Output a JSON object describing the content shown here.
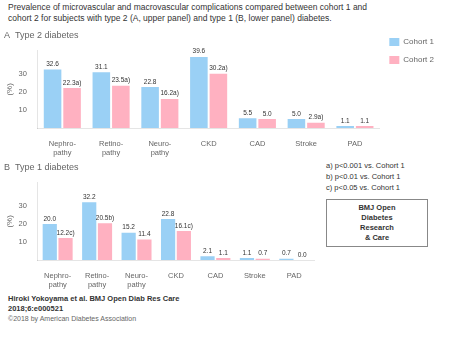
{
  "title": [
    "Prevalence of microvascular and macrovascular complications compared between cohort 1 and",
    "cohort 2 for subjects with type 2 (A, upper panel) and type 1 (B, lower panel) diabetes."
  ],
  "annotations": [
    "a) p<0.001 vs. Cohort 1",
    "b) p<0.01 vs. Cohort 1",
    "c) p<0.05 vs. Cohort 1",
    "BMJ Open\nDiabetes\nResearch\n& Care",
    "Hiroki Yokoyama et al. BMJ Open Diab Res Care",
    "2018;6:e000521",
    "©2018 by American Diabetes Association"
  ],
  "chart_data": [
    {
      "type": "bar",
      "title": "A  Type 2 diabetes",
      "categories": [
        "Nephro-\npathy",
        "Retino-\npathy",
        "Neuro-\npathy",
        "CKD",
        "CAD",
        "Stroke",
        "PAD"
      ],
      "series": [
        {
          "name": "Cohort 1",
          "values": [
            32.6,
            31.1,
            22.8,
            39.6,
            5.5,
            5.0,
            1.1
          ],
          "value_labels": [
            "32.6",
            "31.1",
            "22.8",
            "39.6",
            "5.5",
            "5.0",
            "1.1"
          ]
        },
        {
          "name": "Cohort 2",
          "values": [
            22.3,
            23.5,
            16.2,
            30.2,
            5.0,
            2.9,
            1.1
          ],
          "value_labels": [
            "22.3a)",
            "23.5a)",
            "16.2a)",
            "30.2a)",
            "5.0",
            "2.9a)",
            "1.1"
          ]
        }
      ],
      "ylabel": "(%)",
      "ylim": [
        0,
        43
      ],
      "yticks": [
        10,
        20,
        30
      ],
      "grid": false,
      "legend": "right",
      "data_labels": true
    },
    {
      "type": "bar",
      "title": "B  Type 1 diabetes",
      "categories": [
        "Nephro-\npathy",
        "Retino-\npathy",
        "Neuro-\npathy",
        "CKD",
        "CAD",
        "Stroke",
        "PAD"
      ],
      "series": [
        {
          "name": "Cohort 1",
          "values": [
            20.0,
            32.2,
            15.2,
            22.8,
            2.1,
            1.1,
            0.7
          ],
          "value_labels": [
            "20.0",
            "32.2",
            "15.2",
            "22.8",
            "2.1",
            "1.1",
            "0.7"
          ]
        },
        {
          "name": "Cohort 2",
          "values": [
            12.2,
            20.5,
            11.4,
            16.1,
            1.1,
            0.7,
            0.0
          ],
          "value_labels": [
            "12.2c)",
            "20.5b)",
            "11.4",
            "16.1c)",
            "1.1",
            "0.7",
            "0.0"
          ]
        }
      ],
      "ylabel": "(%)",
      "ylim": [
        0,
        43
      ],
      "yticks": [
        10,
        20,
        30
      ],
      "grid": false,
      "data_labels": true
    }
  ]
}
